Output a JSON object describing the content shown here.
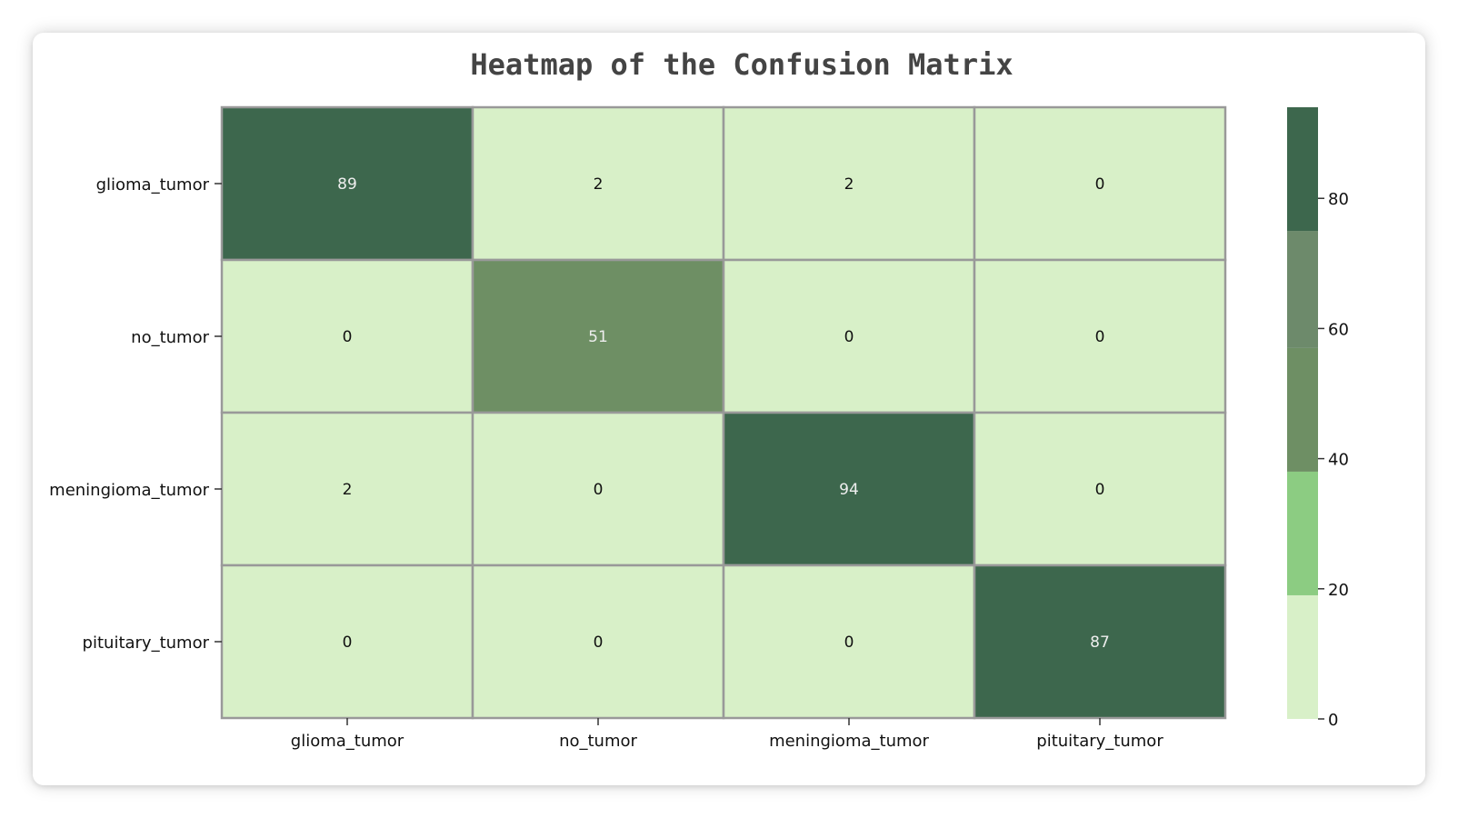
{
  "chart_data": {
    "type": "heatmap",
    "title": "Heatmap of the Confusion Matrix",
    "xlabel": "",
    "ylabel": "",
    "row_labels": [
      "glioma_tumor",
      "no_tumor",
      "meningioma_tumor",
      "pituitary_tumor"
    ],
    "col_labels": [
      "glioma_tumor",
      "no_tumor",
      "meningioma_tumor",
      "pituitary_tumor"
    ],
    "values": [
      [
        89,
        2,
        2,
        0
      ],
      [
        0,
        51,
        0,
        0
      ],
      [
        2,
        0,
        94,
        0
      ],
      [
        0,
        0,
        0,
        87
      ]
    ],
    "colorbar": {
      "range": [
        0,
        94
      ],
      "ticks": [
        0,
        20,
        40,
        60,
        80
      ],
      "bands": [
        {
          "from": 0,
          "to": 19,
          "color": "#d8f0c8"
        },
        {
          "from": 19,
          "to": 38,
          "color": "#8ccc82"
        },
        {
          "from": 38,
          "to": 57,
          "color": "#6e8f64"
        },
        {
          "from": 57,
          "to": 75,
          "color": "#6d8a6b"
        },
        {
          "from": 75,
          "to": 94,
          "color": "#3d674d"
        }
      ]
    },
    "colors": {
      "light_text": "#eeeeee",
      "dark_text": "#111111",
      "cell_border": "#999999"
    },
    "grid": false
  }
}
